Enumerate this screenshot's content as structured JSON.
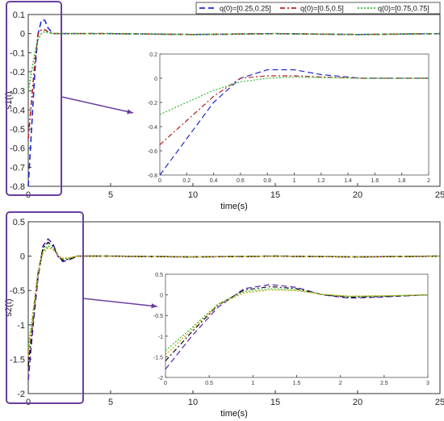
{
  "chart_data": [
    {
      "type": "line",
      "ylabel": "s1(t)",
      "xlabel": "time(s)",
      "xlim": [
        0,
        25
      ],
      "ylim": [
        -0.8,
        0.1
      ],
      "xticks": [
        "0",
        "5",
        "10",
        "15",
        "20",
        "25"
      ],
      "yticks": [
        "0.1",
        "0",
        "-0.1",
        "-0.2",
        "-0.3",
        "-0.4",
        "-0.5",
        "-0.6",
        "-0.7",
        "-0.8"
      ],
      "legend": {
        "placement": "top",
        "entries": [
          "q(0)=[0.25,0.25]",
          "q(0)=[0.5,0.5]",
          "q(0)=[0.75,0.75]"
        ]
      },
      "series": [
        {
          "name": "q(0)=[0.25,0.25]",
          "color": "#1f2bd1",
          "dash": "dashed",
          "x": [
            0,
            0.2,
            0.4,
            0.6,
            0.8,
            1.0,
            1.2,
            1.5,
            2,
            5,
            10,
            15,
            20,
            25
          ],
          "y": [
            -0.8,
            -0.5,
            -0.2,
            0.0,
            0.07,
            0.07,
            0.03,
            0.0,
            0.0,
            0.0,
            -0.005,
            0.0,
            -0.005,
            0.0
          ]
        },
        {
          "name": "q(0)=[0.5,0.5]",
          "color": "#b22222",
          "dash": "dashdot",
          "x": [
            0,
            0.2,
            0.4,
            0.6,
            0.8,
            1.0,
            1.2,
            1.5,
            2,
            5,
            10,
            15,
            20,
            25
          ],
          "y": [
            -0.55,
            -0.35,
            -0.15,
            0.0,
            0.02,
            0.02,
            0.01,
            0.0,
            0.0,
            0.0,
            -0.005,
            0.0,
            -0.005,
            0.0
          ]
        },
        {
          "name": "q(0)=[0.75,0.75]",
          "color": "#2fbf2f",
          "dash": "dotted",
          "x": [
            0,
            0.2,
            0.4,
            0.6,
            0.8,
            1.0,
            1.2,
            1.5,
            2,
            5,
            10,
            15,
            20,
            25
          ],
          "y": [
            -0.3,
            -0.2,
            -0.1,
            -0.03,
            0.0,
            0.01,
            0.005,
            0.0,
            0.0,
            0.0,
            -0.005,
            0.0,
            -0.005,
            0.0
          ]
        }
      ],
      "inset": {
        "xlim": [
          0,
          2
        ],
        "ylim": [
          -0.8,
          0.2
        ],
        "xticks": [
          "0",
          "0.2",
          "0.4",
          "0.6",
          "0.8",
          "1",
          "1.2",
          "1.4",
          "1.6",
          "1.8",
          "2"
        ],
        "yticks": [
          "0.2",
          "0",
          "-0.2",
          "-0.4",
          "-0.6",
          "-0.8"
        ]
      }
    },
    {
      "type": "line",
      "ylabel": "s2(t)",
      "xlabel": "time(s)",
      "xlim": [
        0,
        25
      ],
      "ylim": [
        -2,
        0.5
      ],
      "xticks": [
        "0",
        "5",
        "10",
        "15",
        "20",
        "25"
      ],
      "yticks": [
        "0.5",
        "0",
        "-0.5",
        "-1",
        "-1.5",
        "-2"
      ],
      "series": [
        {
          "name": "q(0)=[0.25,0.25]",
          "color": "#5a1fb0",
          "dash": "dashed",
          "x": [
            0,
            0.3,
            0.6,
            0.9,
            1.2,
            1.5,
            1.8,
            2.1,
            2.5,
            3,
            5,
            10,
            15,
            20,
            25
          ],
          "y": [
            -1.8,
            -1.0,
            -0.3,
            0.15,
            0.25,
            0.18,
            0.0,
            -0.08,
            -0.05,
            0.0,
            0.0,
            -0.01,
            0.0,
            -0.01,
            0.0
          ]
        },
        {
          "name": "q(0)=[0.5,0.5]",
          "color": "#111111",
          "dash": "dashdot",
          "x": [
            0,
            0.3,
            0.6,
            0.9,
            1.2,
            1.5,
            1.8,
            2.1,
            2.5,
            3,
            5,
            10,
            15,
            20,
            25
          ],
          "y": [
            -1.6,
            -0.9,
            -0.25,
            0.12,
            0.2,
            0.15,
            0.0,
            -0.06,
            -0.04,
            0.0,
            0.0,
            -0.01,
            0.0,
            -0.01,
            0.0
          ]
        },
        {
          "name": "q(0)=[0.75,0.75]",
          "color": "#2fbf2f",
          "dash": "dotted",
          "x": [
            0,
            0.3,
            0.6,
            0.9,
            1.2,
            1.5,
            1.8,
            2.1,
            2.5,
            3,
            5,
            10,
            15,
            20,
            25
          ],
          "y": [
            -1.35,
            -0.8,
            -0.22,
            0.08,
            0.15,
            0.12,
            0.01,
            -0.04,
            -0.03,
            0.0,
            0.0,
            -0.01,
            0.0,
            -0.01,
            0.0
          ]
        },
        {
          "name": "",
          "color": "#d4a000",
          "dash": "dotted",
          "x": [
            0,
            0.3,
            0.6,
            0.9,
            1.2,
            1.5,
            1.8,
            2.1,
            2.5,
            3,
            5,
            10,
            15,
            20,
            25
          ],
          "y": [
            -1.45,
            -0.85,
            -0.24,
            0.05,
            0.12,
            0.1,
            0.01,
            -0.03,
            -0.02,
            0.0,
            0.0,
            -0.01,
            0.0,
            -0.01,
            0.0
          ]
        }
      ],
      "inset": {
        "xlim": [
          0,
          3
        ],
        "ylim": [
          -2,
          0.5
        ],
        "xticks": [
          "0",
          "0.5",
          "1",
          "1.5",
          "2",
          "2.5",
          "3"
        ],
        "yticks": [
          "0.5",
          "0",
          "-0.5",
          "-1",
          "-1.5",
          "-2"
        ]
      }
    }
  ],
  "colors": {
    "highlight_box": "#6a3fa0",
    "arrow": "#6a3fa0"
  }
}
